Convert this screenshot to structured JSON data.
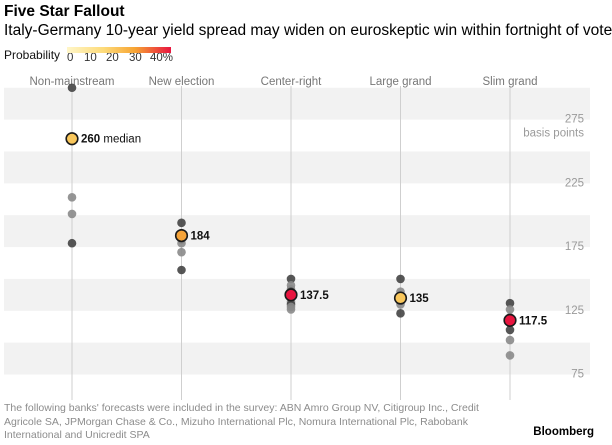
{
  "header": {
    "title": "Five Star Fallout",
    "subtitle": "Italy-Germany 10-year yield spread may widen on euroskeptic win within fortnight of vote"
  },
  "legend": {
    "label": "Probability",
    "ticks": [
      "0",
      "10",
      "20",
      "30",
      "40%"
    ],
    "colors": [
      "#fff3bf",
      "#fddf84",
      "#f9b53e",
      "#ef6b3c",
      "#e8153f"
    ]
  },
  "chart_data": {
    "type": "scatter",
    "categories": [
      "Non-mainstream",
      "New election",
      "Center-right",
      "Large grand",
      "Slim grand"
    ],
    "ylabel": "basis points",
    "ylim": [
      55,
      310
    ],
    "yticks": [
      75,
      125,
      175,
      225,
      275
    ],
    "grid": true,
    "series": [
      {
        "category": "Non-mainstream",
        "median": 260,
        "median_label": "260 median",
        "median_probability": 15,
        "points": [
          300,
          214,
          201,
          178
        ]
      },
      {
        "category": "New election",
        "median": 184,
        "median_label": "184",
        "median_probability": 25,
        "points": [
          194,
          186,
          183,
          181,
          178,
          171,
          157
        ]
      },
      {
        "category": "Center-right",
        "median": 137.5,
        "median_label": "137.5",
        "median_probability": 40,
        "points": [
          150,
          145,
          142,
          140,
          135,
          132,
          130,
          128,
          126
        ]
      },
      {
        "category": "Large grand",
        "median": 135,
        "median_label": "135",
        "median_probability": 20,
        "points": [
          150,
          140,
          130,
          123
        ]
      },
      {
        "category": "Slim grand",
        "median": 117.5,
        "median_label": "117.5",
        "median_probability": 40,
        "points": [
          131,
          126,
          120,
          110,
          102,
          90
        ]
      }
    ]
  },
  "footnote": "The following banks' forecasts were included in the survey: ABN Amro Group NV, Citigroup Inc., Credit Agricole SA, JPMorgan Chase & Co., Mizuho International Plc, Nomura International Plc, Rabobank International and Unicredit SPA",
  "brand": "Bloomberg"
}
